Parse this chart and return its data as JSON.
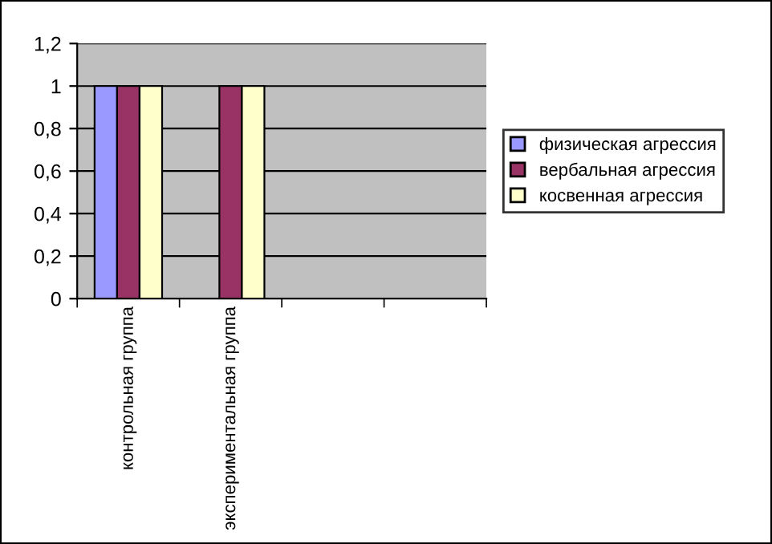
{
  "chart_data": {
    "type": "bar",
    "categories": [
      "контрольная группа",
      "экспериментальная группа",
      null,
      null
    ],
    "series": [
      {
        "name": "физическая агрессия",
        "color": "#9999ff",
        "values": [
          1,
          null,
          null,
          null
        ]
      },
      {
        "name": "вербальная агрессия",
        "color": "#993366",
        "values": [
          1,
          1,
          null,
          null
        ]
      },
      {
        "name": "косвенная агрессия",
        "color": "#ffffcc",
        "values": [
          1,
          1,
          null,
          null
        ]
      }
    ],
    "ylim": [
      0,
      1.2
    ],
    "yticks": [
      {
        "value": 0,
        "label": "0"
      },
      {
        "value": 0.2,
        "label": "0,2"
      },
      {
        "value": 0.4,
        "label": "0,4"
      },
      {
        "value": 0.6,
        "label": "0,6"
      },
      {
        "value": 0.8,
        "label": "0,8"
      },
      {
        "value": 1,
        "label": "1"
      },
      {
        "value": 1.2,
        "label": "1,2"
      }
    ],
    "grid": "y",
    "legend": "right"
  }
}
